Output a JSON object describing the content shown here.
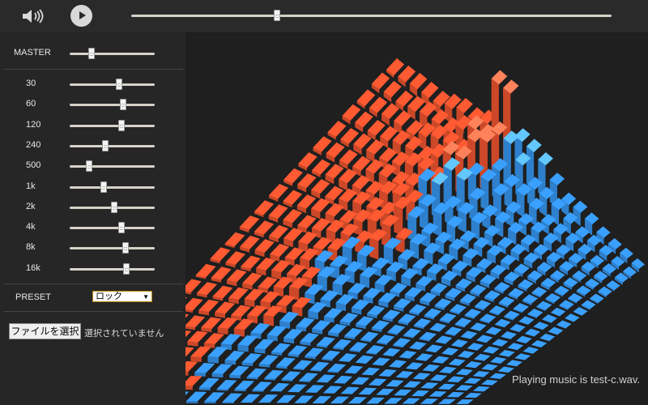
{
  "player": {
    "seek_progress": 0.306,
    "volume_icon": "speaker-icon",
    "play_icon": "play-icon"
  },
  "equalizer": {
    "master_label": "MASTER",
    "master_value": 0.27,
    "bands": [
      {
        "label": "30",
        "value": 0.59
      },
      {
        "label": "60",
        "value": 0.64
      },
      {
        "label": "120",
        "value": 0.62
      },
      {
        "label": "240",
        "value": 0.43
      },
      {
        "label": "500",
        "value": 0.24
      },
      {
        "label": "1k",
        "value": 0.41
      },
      {
        "label": "2k",
        "value": 0.53
      },
      {
        "label": "4k",
        "value": 0.62
      },
      {
        "label": "8k",
        "value": 0.67
      },
      {
        "label": "16k",
        "value": 0.68
      }
    ],
    "preset_label": "PRESET",
    "preset_value": "ロック"
  },
  "file": {
    "button_label": "ファイルを選択",
    "status": "選択されていません"
  },
  "status_text": "Playing music is test-c.wav.",
  "colors": {
    "left_channel": "#ff5a32",
    "right_channel": "#3aa0ff"
  }
}
